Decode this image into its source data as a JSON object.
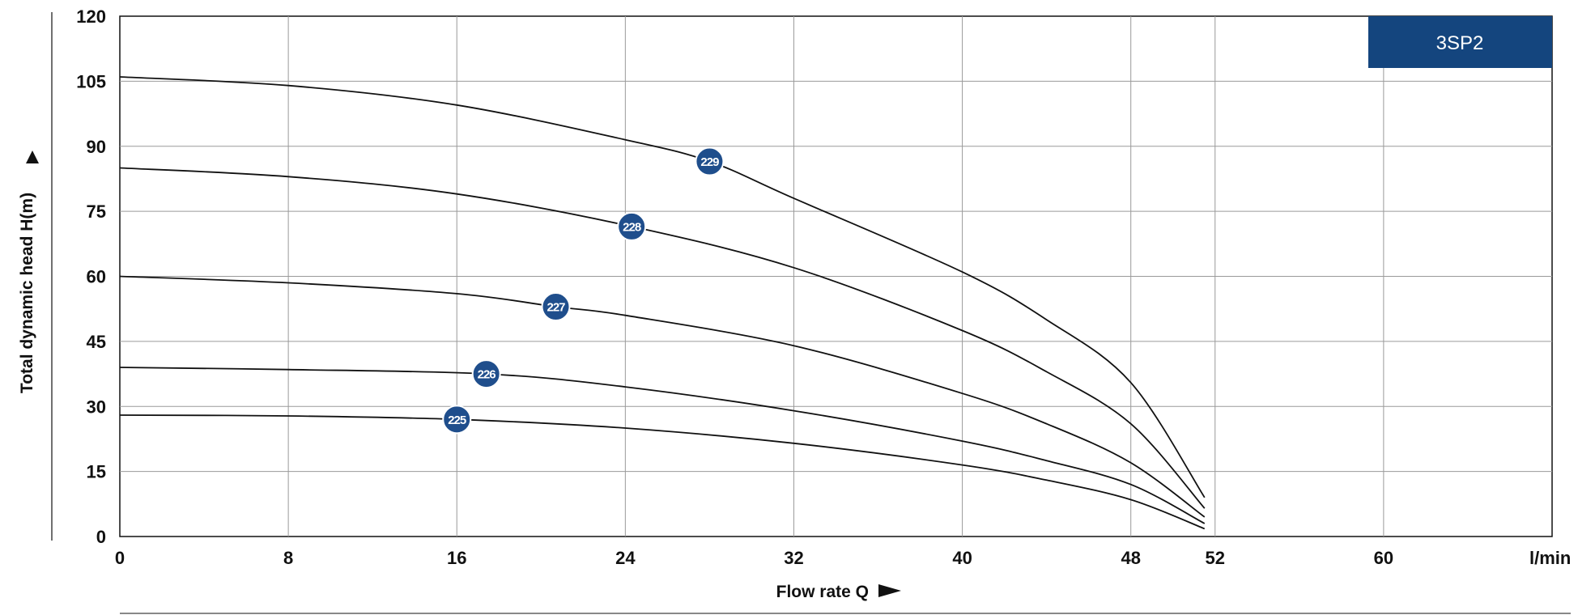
{
  "model_label": "3SP2",
  "colors": {
    "badge": "#1f4e8c",
    "model_box": "#14457e",
    "curve": "#111111",
    "grid": "#9a9a9a",
    "axis": "#111111"
  },
  "chart_data": {
    "type": "line",
    "title": "",
    "xlabel": "Flow rate Q",
    "ylabel": "Total dynamic head H(m)",
    "x_unit": "l/min",
    "xlim": [
      0,
      68
    ],
    "ylim": [
      0,
      120
    ],
    "x_tick_values": [
      0,
      8,
      16,
      24,
      32,
      40,
      48,
      52,
      60
    ],
    "x_tick_labels": [
      "0",
      "8",
      "16",
      "24",
      "32",
      "40",
      "48",
      "52",
      "60"
    ],
    "y_ticks": [
      0,
      15,
      30,
      45,
      60,
      75,
      90,
      105,
      120
    ],
    "grid": true,
    "series": [
      {
        "name": "229",
        "label_at": [
          28,
          86.5
        ],
        "points": [
          [
            0,
            106
          ],
          [
            8,
            104
          ],
          [
            16,
            99.5
          ],
          [
            24,
            91.5
          ],
          [
            28,
            86.5
          ],
          [
            32,
            78
          ],
          [
            40,
            61
          ],
          [
            44,
            50
          ],
          [
            48,
            35.5
          ],
          [
            51.5,
            9
          ]
        ]
      },
      {
        "name": "228",
        "label_at": [
          24.3,
          71.5
        ],
        "points": [
          [
            0,
            85
          ],
          [
            8,
            83
          ],
          [
            16,
            79
          ],
          [
            24.3,
            71.5
          ],
          [
            32,
            62
          ],
          [
            40,
            47.5
          ],
          [
            44,
            38
          ],
          [
            48,
            26
          ],
          [
            51.5,
            6.5
          ]
        ]
      },
      {
        "name": "227",
        "label_at": [
          20.7,
          53
        ],
        "points": [
          [
            0,
            60
          ],
          [
            8,
            58.5
          ],
          [
            16,
            56
          ],
          [
            20.7,
            53
          ],
          [
            24,
            51
          ],
          [
            32,
            44
          ],
          [
            40,
            33
          ],
          [
            44,
            26
          ],
          [
            48,
            17
          ],
          [
            51.5,
            4.5
          ]
        ]
      },
      {
        "name": "226",
        "label_at": [
          17.4,
          37.5
        ],
        "points": [
          [
            0,
            39
          ],
          [
            8,
            38.5
          ],
          [
            17.4,
            37.5
          ],
          [
            24,
            34.5
          ],
          [
            32,
            29
          ],
          [
            40,
            22
          ],
          [
            44,
            17.5
          ],
          [
            48,
            12
          ],
          [
            51.5,
            3
          ]
        ]
      },
      {
        "name": "225",
        "label_at": [
          16,
          27
        ],
        "points": [
          [
            0,
            28
          ],
          [
            8,
            27.8
          ],
          [
            16,
            27
          ],
          [
            24,
            25
          ],
          [
            32,
            21.5
          ],
          [
            40,
            16.5
          ],
          [
            44,
            13
          ],
          [
            48,
            8.5
          ],
          [
            51.5,
            1.8
          ]
        ]
      }
    ]
  }
}
